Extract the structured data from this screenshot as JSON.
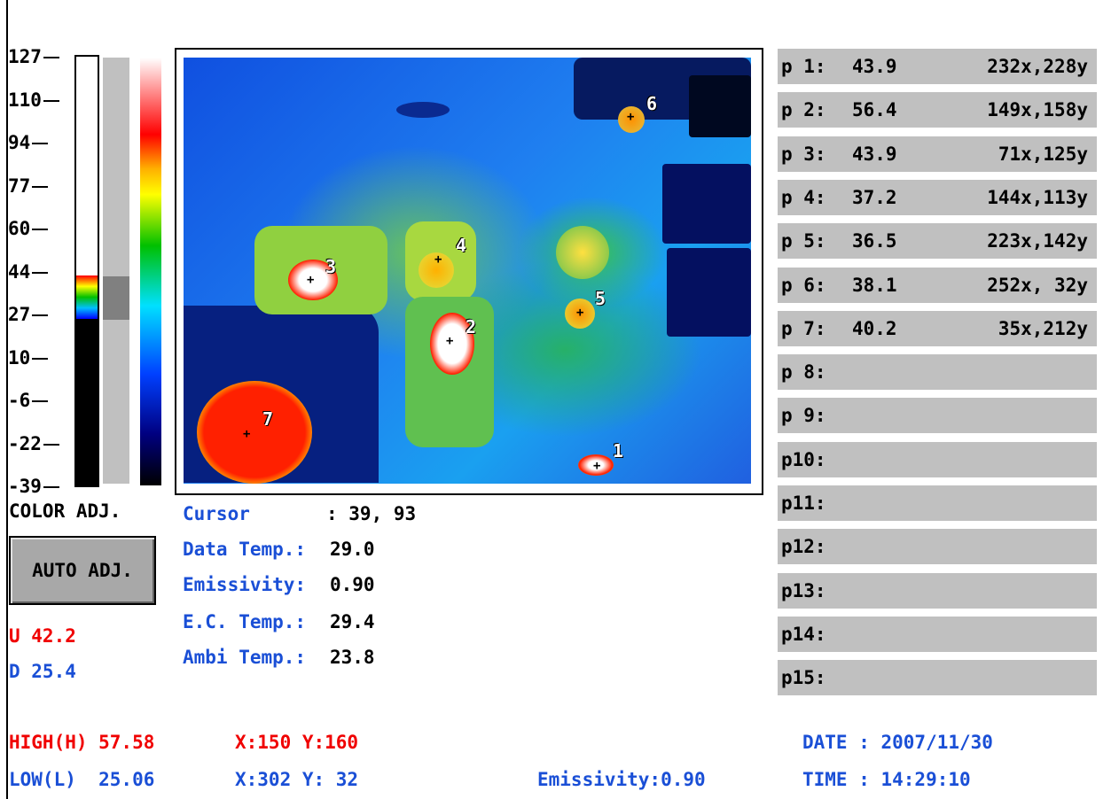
{
  "scale": {
    "ticks": [
      "127",
      "110",
      "94",
      "77",
      "60",
      "44",
      "27",
      "10",
      "-6",
      "-22",
      "-39"
    ],
    "upper_value": 42.2,
    "lower_value": 25.4,
    "min": -39,
    "max": 127
  },
  "color_adj_label": "COLOR ADJ.",
  "auto_adj_label": "AUTO ADJ.",
  "u_label": "U 42.2",
  "d_label": "D 25.4",
  "info": {
    "cursor_key": "Cursor      ",
    "cursor_val": ": 39, 93",
    "data_temp_key": "Data Temp.:",
    "data_temp_val": "29.0",
    "emissivity_key": "Emissivity:",
    "emissivity_val": "0.90",
    "ec_temp_key": "E.C. Temp.:",
    "ec_temp_val": "29.4",
    "ambi_temp_key": "Ambi Temp.:",
    "ambi_temp_val": "23.8"
  },
  "markers": [
    "1",
    "2",
    "3",
    "4",
    "5",
    "6",
    "7"
  ],
  "points": [
    {
      "label": "p 1:",
      "value": "43.9",
      "coord": "232x,228y"
    },
    {
      "label": "p 2:",
      "value": "56.4",
      "coord": "149x,158y"
    },
    {
      "label": "p 3:",
      "value": "43.9",
      "coord": "71x,125y"
    },
    {
      "label": "p 4:",
      "value": "37.2",
      "coord": "144x,113y"
    },
    {
      "label": "p 5:",
      "value": "36.5",
      "coord": "223x,142y"
    },
    {
      "label": "p 6:",
      "value": "38.1",
      "coord": "252x, 32y"
    },
    {
      "label": "p 7:",
      "value": "40.2",
      "coord": "35x,212y"
    },
    {
      "label": "p 8:",
      "value": "",
      "coord": ""
    },
    {
      "label": "p 9:",
      "value": "",
      "coord": ""
    },
    {
      "label": "p10:",
      "value": "",
      "coord": ""
    },
    {
      "label": "p11:",
      "value": "",
      "coord": ""
    },
    {
      "label": "p12:",
      "value": "",
      "coord": ""
    },
    {
      "label": "p13:",
      "value": "",
      "coord": ""
    },
    {
      "label": "p14:",
      "value": "",
      "coord": ""
    },
    {
      "label": "p15:",
      "value": "",
      "coord": ""
    }
  ],
  "footer": {
    "high_label": "HIGH(H) 57.58",
    "high_xy": "X:150 Y:160",
    "low_label": "LOW(L)  25.06",
    "low_xy": "X:302 Y: 32",
    "emissivity": "Emissivity:0.90",
    "date": "DATE : 2007/11/30",
    "time": "TIME : 14:29:10"
  },
  "colors": {
    "red": "#f00000",
    "blue": "#1a4fd6",
    "row_gray": "#c0c0c0"
  }
}
